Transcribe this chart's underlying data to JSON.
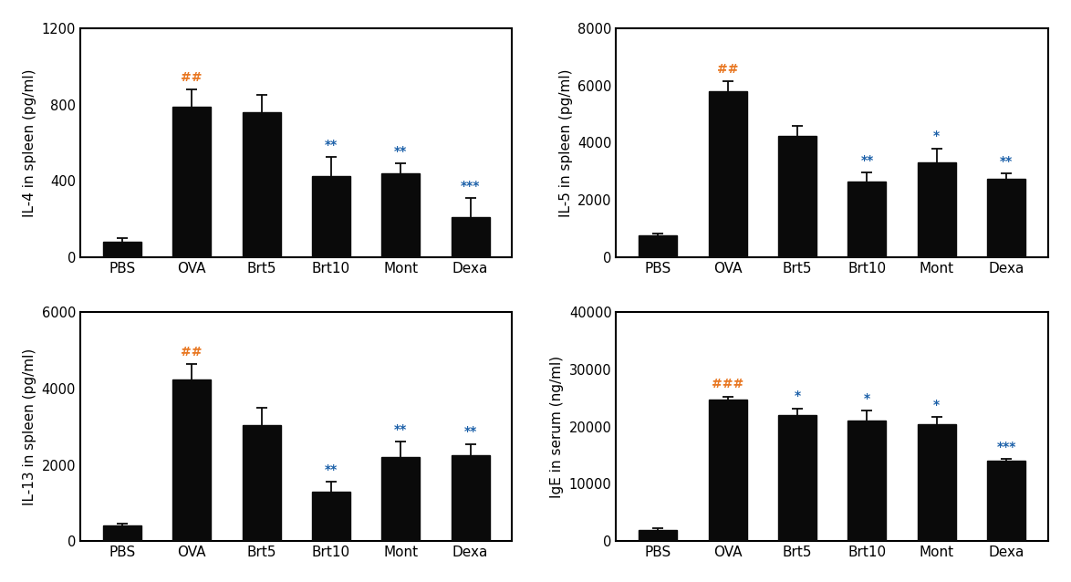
{
  "categories": [
    "PBS",
    "OVA",
    "Brt5",
    "Brt10",
    "Mont",
    "Dexa"
  ],
  "subplots": [
    {
      "ylabel": "IL-4 in spleen (pg/ml)",
      "ylim": [
        0,
        1200
      ],
      "yticks": [
        0,
        400,
        800,
        1200
      ],
      "values": [
        80,
        790,
        760,
        425,
        440,
        210
      ],
      "errors": [
        20,
        90,
        90,
        100,
        50,
        100
      ],
      "annotations": [
        {
          "idx": 1,
          "text": "##",
          "color": "#e87722",
          "fontsize": 10
        },
        {
          "idx": 3,
          "text": "**",
          "color": "#1a5fa8",
          "fontsize": 10
        },
        {
          "idx": 4,
          "text": "**",
          "color": "#1a5fa8",
          "fontsize": 10
        },
        {
          "idx": 5,
          "text": "***",
          "color": "#1a5fa8",
          "fontsize": 10
        }
      ]
    },
    {
      "ylabel": "IL-5 in spleen (pg/ml)",
      "ylim": [
        0,
        8000
      ],
      "yticks": [
        0,
        2000,
        4000,
        6000,
        8000
      ],
      "values": [
        750,
        5800,
        4250,
        2650,
        3300,
        2750
      ],
      "errors": [
        80,
        350,
        350,
        300,
        500,
        180
      ],
      "annotations": [
        {
          "idx": 1,
          "text": "##",
          "color": "#e87722",
          "fontsize": 10
        },
        {
          "idx": 3,
          "text": "**",
          "color": "#1a5fa8",
          "fontsize": 10
        },
        {
          "idx": 4,
          "text": "*",
          "color": "#1a5fa8",
          "fontsize": 10
        },
        {
          "idx": 5,
          "text": "**",
          "color": "#1a5fa8",
          "fontsize": 10
        }
      ]
    },
    {
      "ylabel": "IL-13 in spleen (pg/ml)",
      "ylim": [
        0,
        6000
      ],
      "yticks": [
        0,
        2000,
        4000,
        6000
      ],
      "values": [
        400,
        4250,
        3050,
        1300,
        2200,
        2250
      ],
      "errors": [
        50,
        400,
        450,
        250,
        400,
        300
      ],
      "annotations": [
        {
          "idx": 1,
          "text": "##",
          "color": "#e87722",
          "fontsize": 10
        },
        {
          "idx": 3,
          "text": "**",
          "color": "#1a5fa8",
          "fontsize": 10
        },
        {
          "idx": 4,
          "text": "**",
          "color": "#1a5fa8",
          "fontsize": 10
        },
        {
          "idx": 5,
          "text": "**",
          "color": "#1a5fa8",
          "fontsize": 10
        }
      ]
    },
    {
      "ylabel": "IgE in serum (ng/ml)",
      "ylim": [
        0,
        40000
      ],
      "yticks": [
        0,
        10000,
        20000,
        30000,
        40000
      ],
      "values": [
        2000,
        24800,
        22000,
        21000,
        20500,
        14000
      ],
      "errors": [
        200,
        500,
        1200,
        1800,
        1200,
        400
      ],
      "annotations": [
        {
          "idx": 1,
          "text": "###",
          "color": "#e87722",
          "fontsize": 10
        },
        {
          "idx": 2,
          "text": "*",
          "color": "#1a5fa8",
          "fontsize": 10
        },
        {
          "idx": 3,
          "text": "*",
          "color": "#1a5fa8",
          "fontsize": 10
        },
        {
          "idx": 4,
          "text": "*",
          "color": "#1a5fa8",
          "fontsize": 10
        },
        {
          "idx": 5,
          "text": "***",
          "color": "#1a5fa8",
          "fontsize": 10
        }
      ]
    }
  ],
  "bar_color": "#0a0a0a",
  "bar_width": 0.55,
  "capsize": 4,
  "xlabel_fontsize": 11,
  "ylabel_fontsize": 11,
  "tick_fontsize": 10.5,
  "spine_linewidth": 1.5
}
